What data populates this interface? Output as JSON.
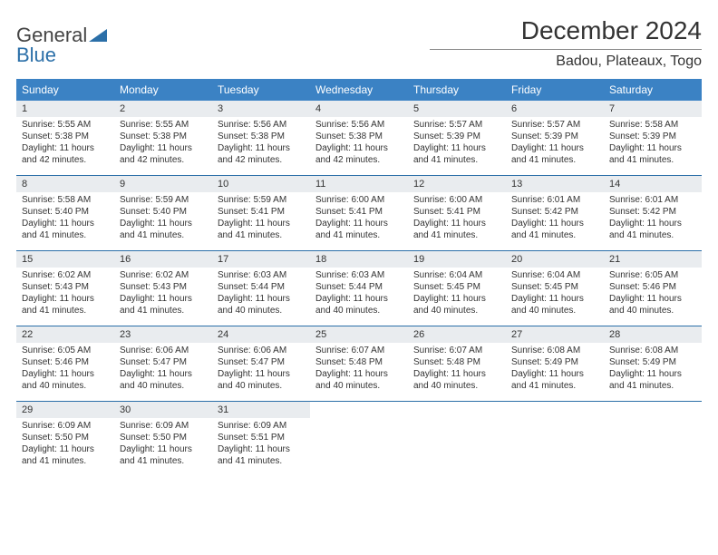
{
  "brand": {
    "part1": "General",
    "part2": "Blue"
  },
  "title": "December 2024",
  "location": "Badou, Plateaux, Togo",
  "header_bg": "#3b82c4",
  "header_fg": "#ffffff",
  "daynum_bg": "#e9ecef",
  "row_border": "#2b6fa8",
  "days": [
    "Sunday",
    "Monday",
    "Tuesday",
    "Wednesday",
    "Thursday",
    "Friday",
    "Saturday"
  ],
  "weeks": [
    [
      {
        "n": "1",
        "sr": "Sunrise: 5:55 AM",
        "ss": "Sunset: 5:38 PM",
        "dl1": "Daylight: 11 hours",
        "dl2": "and 42 minutes."
      },
      {
        "n": "2",
        "sr": "Sunrise: 5:55 AM",
        "ss": "Sunset: 5:38 PM",
        "dl1": "Daylight: 11 hours",
        "dl2": "and 42 minutes."
      },
      {
        "n": "3",
        "sr": "Sunrise: 5:56 AM",
        "ss": "Sunset: 5:38 PM",
        "dl1": "Daylight: 11 hours",
        "dl2": "and 42 minutes."
      },
      {
        "n": "4",
        "sr": "Sunrise: 5:56 AM",
        "ss": "Sunset: 5:38 PM",
        "dl1": "Daylight: 11 hours",
        "dl2": "and 42 minutes."
      },
      {
        "n": "5",
        "sr": "Sunrise: 5:57 AM",
        "ss": "Sunset: 5:39 PM",
        "dl1": "Daylight: 11 hours",
        "dl2": "and 41 minutes."
      },
      {
        "n": "6",
        "sr": "Sunrise: 5:57 AM",
        "ss": "Sunset: 5:39 PM",
        "dl1": "Daylight: 11 hours",
        "dl2": "and 41 minutes."
      },
      {
        "n": "7",
        "sr": "Sunrise: 5:58 AM",
        "ss": "Sunset: 5:39 PM",
        "dl1": "Daylight: 11 hours",
        "dl2": "and 41 minutes."
      }
    ],
    [
      {
        "n": "8",
        "sr": "Sunrise: 5:58 AM",
        "ss": "Sunset: 5:40 PM",
        "dl1": "Daylight: 11 hours",
        "dl2": "and 41 minutes."
      },
      {
        "n": "9",
        "sr": "Sunrise: 5:59 AM",
        "ss": "Sunset: 5:40 PM",
        "dl1": "Daylight: 11 hours",
        "dl2": "and 41 minutes."
      },
      {
        "n": "10",
        "sr": "Sunrise: 5:59 AM",
        "ss": "Sunset: 5:41 PM",
        "dl1": "Daylight: 11 hours",
        "dl2": "and 41 minutes."
      },
      {
        "n": "11",
        "sr": "Sunrise: 6:00 AM",
        "ss": "Sunset: 5:41 PM",
        "dl1": "Daylight: 11 hours",
        "dl2": "and 41 minutes."
      },
      {
        "n": "12",
        "sr": "Sunrise: 6:00 AM",
        "ss": "Sunset: 5:41 PM",
        "dl1": "Daylight: 11 hours",
        "dl2": "and 41 minutes."
      },
      {
        "n": "13",
        "sr": "Sunrise: 6:01 AM",
        "ss": "Sunset: 5:42 PM",
        "dl1": "Daylight: 11 hours",
        "dl2": "and 41 minutes."
      },
      {
        "n": "14",
        "sr": "Sunrise: 6:01 AM",
        "ss": "Sunset: 5:42 PM",
        "dl1": "Daylight: 11 hours",
        "dl2": "and 41 minutes."
      }
    ],
    [
      {
        "n": "15",
        "sr": "Sunrise: 6:02 AM",
        "ss": "Sunset: 5:43 PM",
        "dl1": "Daylight: 11 hours",
        "dl2": "and 41 minutes."
      },
      {
        "n": "16",
        "sr": "Sunrise: 6:02 AM",
        "ss": "Sunset: 5:43 PM",
        "dl1": "Daylight: 11 hours",
        "dl2": "and 41 minutes."
      },
      {
        "n": "17",
        "sr": "Sunrise: 6:03 AM",
        "ss": "Sunset: 5:44 PM",
        "dl1": "Daylight: 11 hours",
        "dl2": "and 40 minutes."
      },
      {
        "n": "18",
        "sr": "Sunrise: 6:03 AM",
        "ss": "Sunset: 5:44 PM",
        "dl1": "Daylight: 11 hours",
        "dl2": "and 40 minutes."
      },
      {
        "n": "19",
        "sr": "Sunrise: 6:04 AM",
        "ss": "Sunset: 5:45 PM",
        "dl1": "Daylight: 11 hours",
        "dl2": "and 40 minutes."
      },
      {
        "n": "20",
        "sr": "Sunrise: 6:04 AM",
        "ss": "Sunset: 5:45 PM",
        "dl1": "Daylight: 11 hours",
        "dl2": "and 40 minutes."
      },
      {
        "n": "21",
        "sr": "Sunrise: 6:05 AM",
        "ss": "Sunset: 5:46 PM",
        "dl1": "Daylight: 11 hours",
        "dl2": "and 40 minutes."
      }
    ],
    [
      {
        "n": "22",
        "sr": "Sunrise: 6:05 AM",
        "ss": "Sunset: 5:46 PM",
        "dl1": "Daylight: 11 hours",
        "dl2": "and 40 minutes."
      },
      {
        "n": "23",
        "sr": "Sunrise: 6:06 AM",
        "ss": "Sunset: 5:47 PM",
        "dl1": "Daylight: 11 hours",
        "dl2": "and 40 minutes."
      },
      {
        "n": "24",
        "sr": "Sunrise: 6:06 AM",
        "ss": "Sunset: 5:47 PM",
        "dl1": "Daylight: 11 hours",
        "dl2": "and 40 minutes."
      },
      {
        "n": "25",
        "sr": "Sunrise: 6:07 AM",
        "ss": "Sunset: 5:48 PM",
        "dl1": "Daylight: 11 hours",
        "dl2": "and 40 minutes."
      },
      {
        "n": "26",
        "sr": "Sunrise: 6:07 AM",
        "ss": "Sunset: 5:48 PM",
        "dl1": "Daylight: 11 hours",
        "dl2": "and 40 minutes."
      },
      {
        "n": "27",
        "sr": "Sunrise: 6:08 AM",
        "ss": "Sunset: 5:49 PM",
        "dl1": "Daylight: 11 hours",
        "dl2": "and 41 minutes."
      },
      {
        "n": "28",
        "sr": "Sunrise: 6:08 AM",
        "ss": "Sunset: 5:49 PM",
        "dl1": "Daylight: 11 hours",
        "dl2": "and 41 minutes."
      }
    ],
    [
      {
        "n": "29",
        "sr": "Sunrise: 6:09 AM",
        "ss": "Sunset: 5:50 PM",
        "dl1": "Daylight: 11 hours",
        "dl2": "and 41 minutes."
      },
      {
        "n": "30",
        "sr": "Sunrise: 6:09 AM",
        "ss": "Sunset: 5:50 PM",
        "dl1": "Daylight: 11 hours",
        "dl2": "and 41 minutes."
      },
      {
        "n": "31",
        "sr": "Sunrise: 6:09 AM",
        "ss": "Sunset: 5:51 PM",
        "dl1": "Daylight: 11 hours",
        "dl2": "and 41 minutes."
      },
      null,
      null,
      null,
      null
    ]
  ]
}
